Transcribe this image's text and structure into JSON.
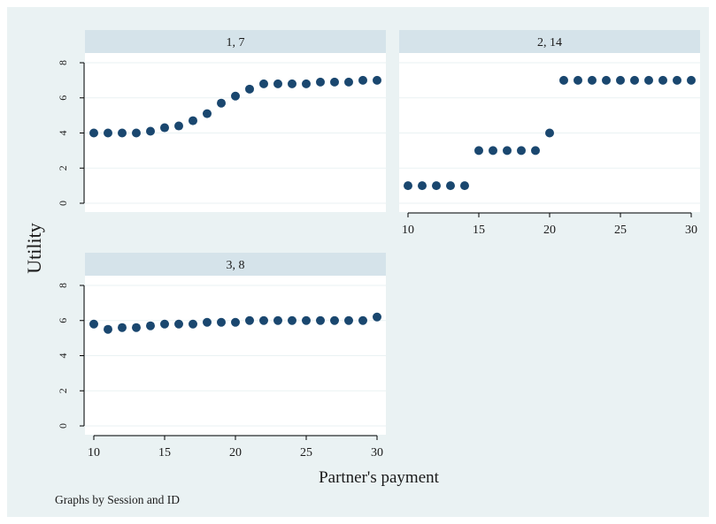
{
  "figure": {
    "ylabel": "Utility",
    "xlabel": "Partner's payment",
    "note": "Graphs by Session and ID",
    "colors": {
      "outer_background": "#eaf2f3",
      "plot_background": "#ffffff",
      "strip_background": "#d5e3ea",
      "marker": "#1a476f",
      "grid": "#eaf2f3",
      "axis": "#000000"
    }
  },
  "chart_data": [
    {
      "type": "scatter",
      "title": "1, 7",
      "x": [
        10,
        11,
        12,
        13,
        14,
        15,
        16,
        17,
        18,
        19,
        20,
        21,
        22,
        23,
        24,
        25,
        26,
        27,
        28,
        29,
        30
      ],
      "y": [
        4,
        4,
        4,
        4,
        4.1,
        4.3,
        4.4,
        4.7,
        5.1,
        5.7,
        6.1,
        6.5,
        6.8,
        6.8,
        6.8,
        6.8,
        6.9,
        6.9,
        6.9,
        7,
        7
      ],
      "ylim": [
        0,
        8
      ],
      "yticks": [
        "0",
        "2",
        "4",
        "6",
        "8"
      ],
      "xlim": [
        10,
        30
      ],
      "xticks": [],
      "grid": true
    },
    {
      "type": "scatter",
      "title": "2, 14",
      "x": [
        10,
        11,
        12,
        13,
        14,
        15,
        16,
        17,
        18,
        19,
        20,
        21,
        22,
        23,
        24,
        25,
        26,
        27,
        28,
        29,
        30
      ],
      "y": [
        1,
        1,
        1,
        1,
        1,
        3,
        3,
        3,
        3,
        3,
        4,
        7,
        7,
        7,
        7,
        7,
        7,
        7,
        7,
        7,
        7
      ],
      "ylim": [
        0,
        8
      ],
      "yticks": [],
      "xlim": [
        10,
        30
      ],
      "xticks": [
        "10",
        "15",
        "20",
        "25",
        "30"
      ],
      "grid": true
    },
    {
      "type": "scatter",
      "title": "3, 8",
      "x": [
        10,
        11,
        12,
        13,
        14,
        15,
        16,
        17,
        18,
        19,
        20,
        21,
        22,
        23,
        24,
        25,
        26,
        27,
        28,
        29,
        30
      ],
      "y": [
        5.8,
        5.5,
        5.6,
        5.6,
        5.7,
        5.8,
        5.8,
        5.8,
        5.9,
        5.9,
        5.9,
        6,
        6,
        6,
        6,
        6,
        6,
        6,
        6,
        6,
        6.2
      ],
      "ylim": [
        0,
        8
      ],
      "yticks": [
        "0",
        "2",
        "4",
        "6",
        "8"
      ],
      "xlim": [
        10,
        30
      ],
      "xticks": [
        "10",
        "15",
        "20",
        "25",
        "30"
      ],
      "grid": true
    }
  ]
}
